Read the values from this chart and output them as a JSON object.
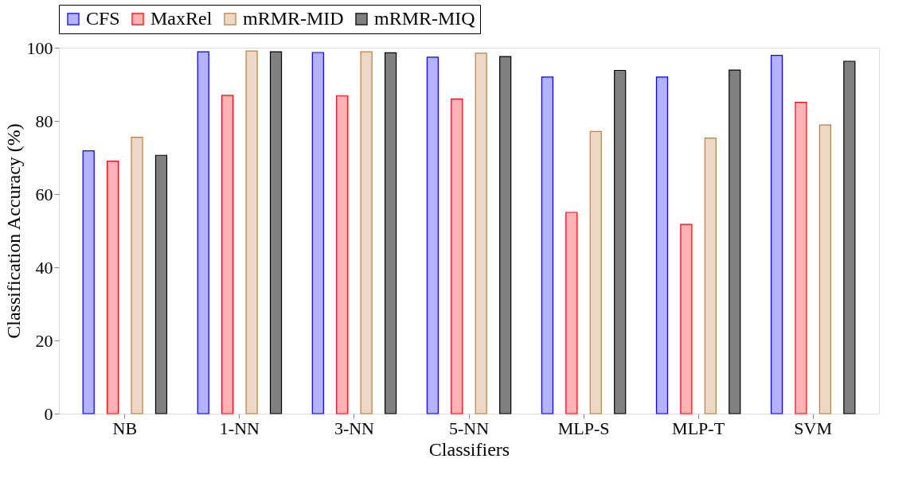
{
  "chart_data": {
    "type": "bar",
    "xlabel": "Classifiers",
    "ylabel": "Classification Accuracy (%)",
    "categories": [
      "NB",
      "1-NN",
      "3-NN",
      "5-NN",
      "MLP-S",
      "MLP-T",
      "SVM"
    ],
    "series": [
      {
        "name": "CFS",
        "color": "#b3b3ff",
        "values": [
          71.8,
          98.9,
          98.7,
          97.4,
          92.0,
          92.0,
          97.9
        ]
      },
      {
        "name": "MaxRel",
        "color": "#ffb3b3",
        "values": [
          69.0,
          87.0,
          86.9,
          86.0,
          55.0,
          51.7,
          85.1
        ]
      },
      {
        "name": "mRMR-MID",
        "color": "#ebd9c5",
        "values": [
          75.5,
          99.1,
          98.9,
          98.5,
          77.1,
          75.3,
          78.9
        ]
      },
      {
        "name": "mRMR-MIQ",
        "color": "#808080",
        "values": [
          70.6,
          98.9,
          98.6,
          97.6,
          93.8,
          93.9,
          96.3
        ]
      }
    ],
    "ylim": [
      0,
      100
    ],
    "yticks": [
      0,
      20,
      40,
      60,
      80,
      100
    ],
    "grid": false,
    "legend": "top"
  }
}
